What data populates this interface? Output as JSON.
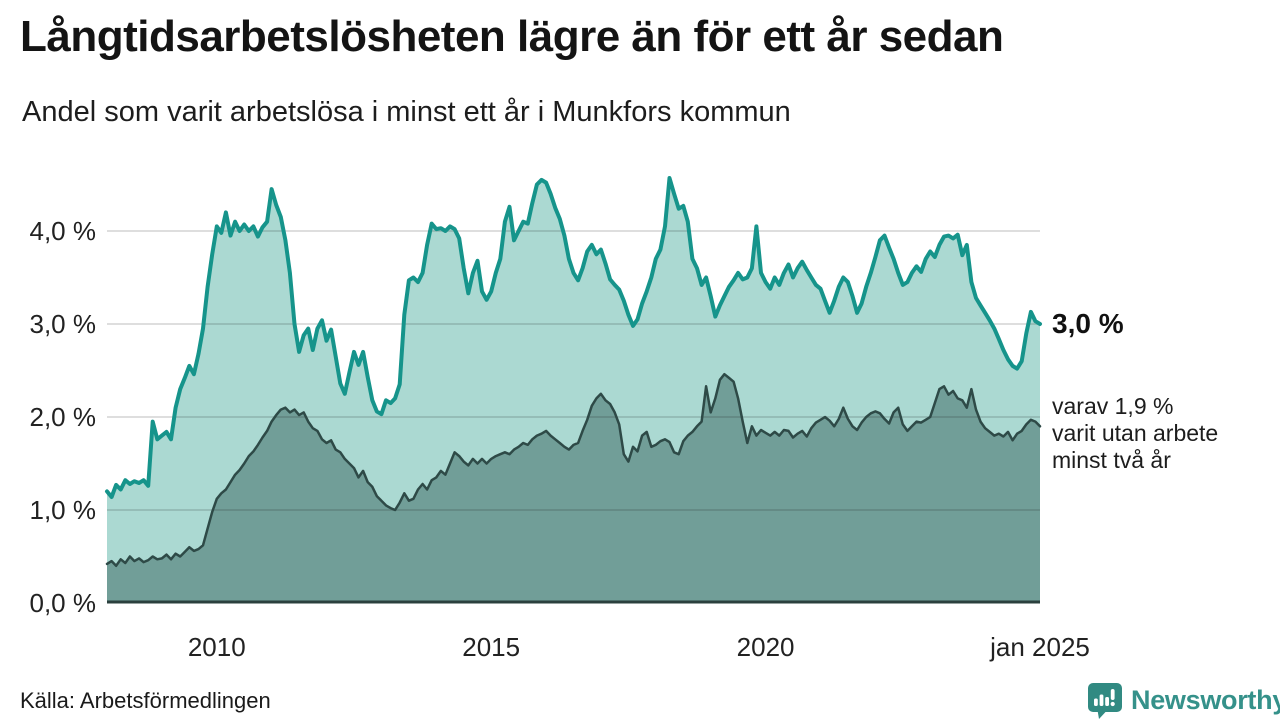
{
  "header": {
    "title": "Långtidsarbetslösheten lägre än för ett år sedan",
    "subtitle": "Andel som varit arbetslösa i minst ett år i Munkfors kommun"
  },
  "annotations": {
    "end_value_label": "3,0 %",
    "end_sub_lines": [
      "varav 1,9 %",
      "varit utan arbete",
      "minst två år"
    ]
  },
  "footer": {
    "source": "Källa: Arbetsförmedlingen",
    "brand": "Newsworthy"
  },
  "colors": {
    "line_min_one_year": "#16948b",
    "fill_min_one_year": "#abd9d2",
    "line_min_two_years": "#2e4a47",
    "fill_min_two_years": "#719e98",
    "grid": "#dcdcdc",
    "axis": "#2b403e",
    "brand_teal": "#35918a"
  },
  "chart_data": {
    "type": "area",
    "title": "Långtidsarbetslösheten lägre än för ett år sedan",
    "subtitle": "Andel som varit arbetslösa i minst ett år i Munkfors kommun",
    "x_start_label": "2008-01",
    "x_end_label": "jan 2025",
    "y_unit": "%",
    "ylim": [
      0,
      4.65
    ],
    "grid": true,
    "y_ticks": [
      {
        "label": "4,0 %",
        "value": 4
      },
      {
        "label": "3,0 %",
        "value": 3
      },
      {
        "label": "2,0 %",
        "value": 2
      },
      {
        "label": "1,0 %",
        "value": 1
      },
      {
        "label": "0,0 %",
        "value": 0
      }
    ],
    "x_ticks": [
      {
        "label": "2010",
        "month": 24
      },
      {
        "label": "2015",
        "month": 84
      },
      {
        "label": "2020",
        "month": 144
      },
      {
        "label": "jan 2025",
        "month": 204
      }
    ],
    "series": [
      {
        "name": "Andel arbetslösa minst ett år",
        "color": "#16948b",
        "fill": "#abd9d2",
        "line_width": 4,
        "end_value": "3,0 %",
        "values": [
          1.2,
          1.14,
          1.27,
          1.22,
          1.32,
          1.28,
          1.31,
          1.29,
          1.32,
          1.26,
          1.95,
          1.76,
          1.8,
          1.84,
          1.76,
          2.1,
          2.3,
          2.42,
          2.55,
          2.46,
          2.68,
          2.95,
          3.4,
          3.75,
          4.05,
          3.98,
          4.2,
          3.95,
          4.1,
          4.0,
          4.07,
          4.0,
          4.05,
          3.94,
          4.04,
          4.1,
          4.45,
          4.28,
          4.15,
          3.9,
          3.55,
          3.0,
          2.7,
          2.88,
          2.95,
          2.72,
          2.95,
          3.04,
          2.82,
          2.94,
          2.65,
          2.36,
          2.25,
          2.48,
          2.7,
          2.56,
          2.7,
          2.43,
          2.18,
          2.06,
          2.03,
          2.18,
          2.15,
          2.2,
          2.35,
          3.1,
          3.47,
          3.5,
          3.45,
          3.55,
          3.85,
          4.08,
          4.02,
          4.03,
          4.0,
          4.05,
          4.02,
          3.92,
          3.6,
          3.33,
          3.55,
          3.68,
          3.35,
          3.26,
          3.35,
          3.55,
          3.7,
          4.1,
          4.26,
          3.9,
          4.0,
          4.1,
          4.08,
          4.3,
          4.5,
          4.55,
          4.52,
          4.4,
          4.25,
          4.13,
          3.95,
          3.7,
          3.55,
          3.47,
          3.6,
          3.78,
          3.85,
          3.75,
          3.8,
          3.65,
          3.48,
          3.42,
          3.37,
          3.25,
          3.1,
          2.98,
          3.05,
          3.22,
          3.35,
          3.5,
          3.7,
          3.8,
          4.05,
          4.57,
          4.4,
          4.24,
          4.27,
          4.1,
          3.7,
          3.6,
          3.42,
          3.5,
          3.3,
          3.08,
          3.2,
          3.3,
          3.4,
          3.47,
          3.55,
          3.48,
          3.5,
          3.6,
          4.05,
          3.55,
          3.45,
          3.38,
          3.5,
          3.42,
          3.55,
          3.64,
          3.5,
          3.6,
          3.67,
          3.58,
          3.5,
          3.42,
          3.38,
          3.25,
          3.12,
          3.25,
          3.4,
          3.5,
          3.45,
          3.3,
          3.12,
          3.22,
          3.4,
          3.55,
          3.72,
          3.9,
          3.95,
          3.82,
          3.7,
          3.55,
          3.42,
          3.45,
          3.55,
          3.62,
          3.56,
          3.7,
          3.78,
          3.72,
          3.85,
          3.94,
          3.95,
          3.92,
          3.96,
          3.74,
          3.85,
          3.45,
          3.28,
          3.2,
          3.12,
          3.04,
          2.95,
          2.84,
          2.72,
          2.62,
          2.55,
          2.52,
          2.6,
          2.9,
          3.13,
          3.03,
          3.0
        ]
      },
      {
        "name": "varav utan arbete minst två år",
        "color": "#2e4a47",
        "fill": "#719e98",
        "line_width": 2.5,
        "end_value": "1,9 %",
        "values": [
          0.42,
          0.45,
          0.4,
          0.47,
          0.43,
          0.5,
          0.45,
          0.48,
          0.44,
          0.46,
          0.5,
          0.47,
          0.48,
          0.52,
          0.47,
          0.53,
          0.5,
          0.55,
          0.6,
          0.56,
          0.58,
          0.62,
          0.8,
          0.98,
          1.12,
          1.18,
          1.22,
          1.3,
          1.38,
          1.43,
          1.5,
          1.58,
          1.63,
          1.7,
          1.78,
          1.85,
          1.95,
          2.02,
          2.08,
          2.1,
          2.05,
          2.08,
          2.02,
          2.05,
          1.95,
          1.88,
          1.85,
          1.76,
          1.72,
          1.75,
          1.65,
          1.62,
          1.55,
          1.5,
          1.45,
          1.35,
          1.42,
          1.3,
          1.25,
          1.15,
          1.1,
          1.05,
          1.02,
          1.0,
          1.08,
          1.18,
          1.1,
          1.12,
          1.22,
          1.28,
          1.22,
          1.32,
          1.35,
          1.42,
          1.38,
          1.5,
          1.62,
          1.58,
          1.52,
          1.48,
          1.55,
          1.5,
          1.55,
          1.5,
          1.55,
          1.58,
          1.6,
          1.62,
          1.6,
          1.65,
          1.68,
          1.72,
          1.7,
          1.76,
          1.8,
          1.82,
          1.85,
          1.8,
          1.76,
          1.72,
          1.68,
          1.65,
          1.7,
          1.72,
          1.85,
          1.97,
          2.12,
          2.2,
          2.25,
          2.18,
          2.14,
          2.05,
          1.92,
          1.6,
          1.52,
          1.68,
          1.63,
          1.8,
          1.84,
          1.68,
          1.7,
          1.74,
          1.76,
          1.73,
          1.62,
          1.6,
          1.74,
          1.8,
          1.84,
          1.9,
          1.95,
          2.33,
          2.05,
          2.2,
          2.4,
          2.46,
          2.42,
          2.38,
          2.2,
          1.95,
          1.72,
          1.9,
          1.8,
          1.86,
          1.83,
          1.8,
          1.84,
          1.8,
          1.86,
          1.85,
          1.78,
          1.82,
          1.85,
          1.79,
          1.88,
          1.94,
          1.97,
          2.0,
          1.96,
          1.9,
          1.98,
          2.1,
          1.98,
          1.9,
          1.86,
          1.94,
          2.0,
          2.04,
          2.06,
          2.04,
          1.98,
          1.93,
          2.05,
          2.1,
          1.92,
          1.85,
          1.9,
          1.95,
          1.94,
          1.97,
          2.0,
          2.15,
          2.3,
          2.33,
          2.24,
          2.28,
          2.2,
          2.18,
          2.1,
          2.3,
          2.08,
          1.95,
          1.88,
          1.84,
          1.8,
          1.82,
          1.79,
          1.84,
          1.75,
          1.82,
          1.85,
          1.92,
          1.97,
          1.95,
          1.9
        ]
      }
    ]
  }
}
